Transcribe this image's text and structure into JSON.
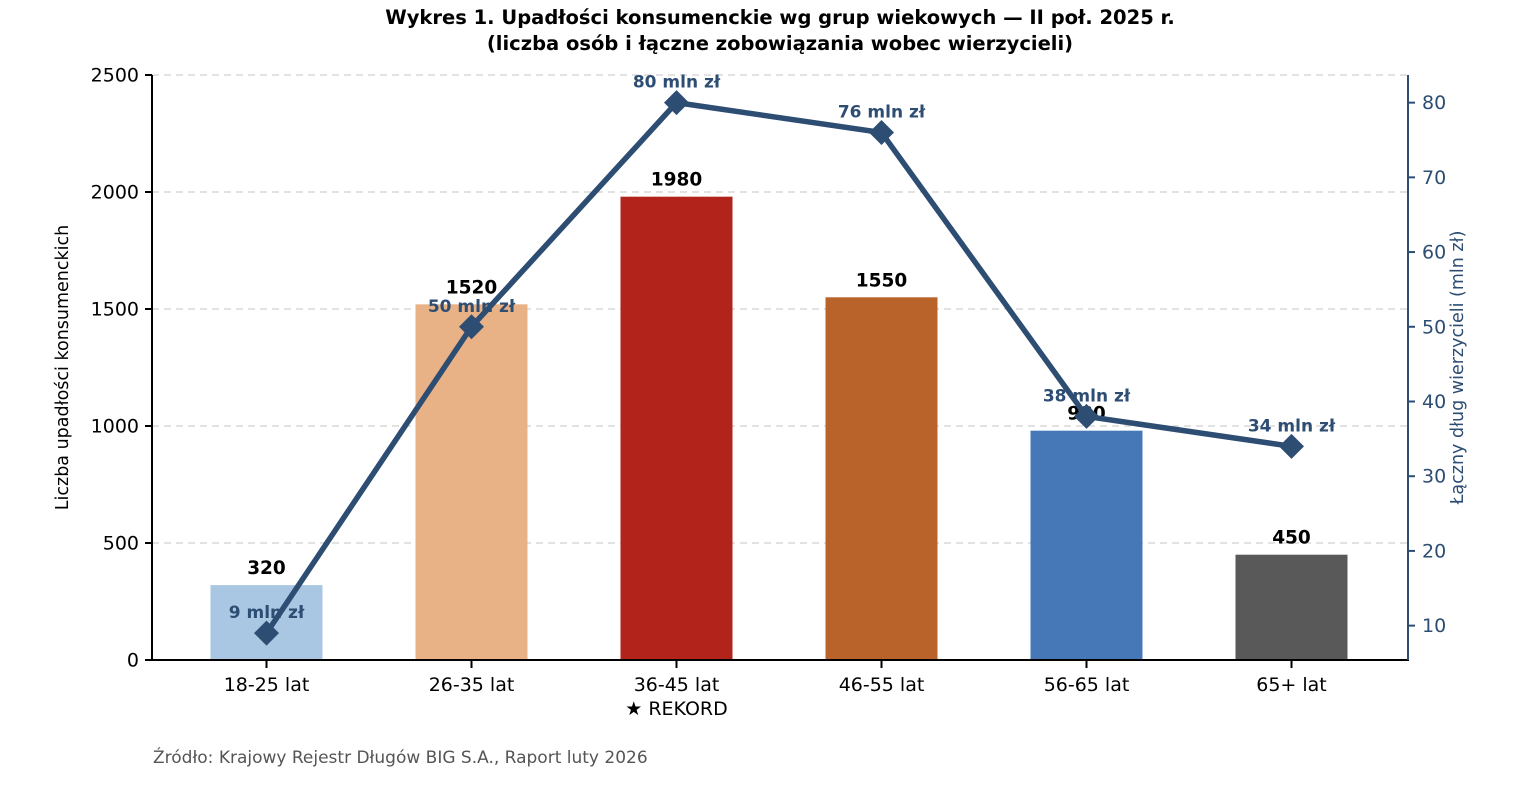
{
  "title": {
    "line1": "Wykres 1. Upadłości konsumenckie wg grup wiekowych — II poł. 2025 r.",
    "line2": "(liczba osób i łączne zobowiązania wobec wierzycieli)"
  },
  "source": "Źródło: Krajowy Rejestr Długów BIG S.A., Raport luty 2026",
  "chart_data": {
    "type": "bar",
    "subtype": "bar-line-combo-dual-axis",
    "categories": [
      "18-25 lat",
      "26-35 lat",
      "36-45 lat",
      "46-55 lat",
      "56-65 lat",
      "65+ lat"
    ],
    "category_annotations": [
      "",
      "",
      "★ REKORD",
      "",
      "",
      ""
    ],
    "series": [
      {
        "name": "Liczba upadłości konsumenckich",
        "type": "bar",
        "axis": "left",
        "values": [
          320,
          1520,
          1980,
          1550,
          980,
          450
        ],
        "value_labels": [
          "320",
          "1520",
          "1980",
          "1550",
          "980",
          "450"
        ],
        "bar_colors": [
          "#a9c6e3",
          "#e9b286",
          "#b2241b",
          "#b9622a",
          "#4678b8",
          "#595959"
        ]
      },
      {
        "name": "Łączny dług wierzycieli (mln zł)",
        "type": "line",
        "axis": "right",
        "values": [
          9,
          50,
          80,
          76,
          38,
          34
        ],
        "value_labels": [
          "9 mln zł",
          "50 mln zł",
          "80 mln zł",
          "76 mln zł",
          "38 mln zł",
          "34 mln zł"
        ],
        "color": "#2d4d73",
        "marker": "diamond"
      }
    ],
    "left_axis": {
      "label": "Liczba upadłości konsumenckich",
      "ticks": [
        0,
        500,
        1000,
        1500,
        2000,
        2500
      ],
      "ylim": [
        0,
        2500
      ],
      "color": "#000000"
    },
    "right_axis": {
      "label": "Łączny dług wierzycieli (mln zł)",
      "ticks": [
        10,
        20,
        30,
        40,
        50,
        60,
        70,
        80
      ],
      "ylim": [
        5.4,
        83.7
      ],
      "color": "#2d4d73"
    },
    "grid": "horizontal-dashed",
    "grid_color": "#d9d9d9",
    "legend_position": "none",
    "title": "Wykres 1. Upadłości konsumenckie wg grup wiekowych — II poł. 2025 r. (liczba osób i łączne zobowiązania wobec wierzycieli)"
  }
}
